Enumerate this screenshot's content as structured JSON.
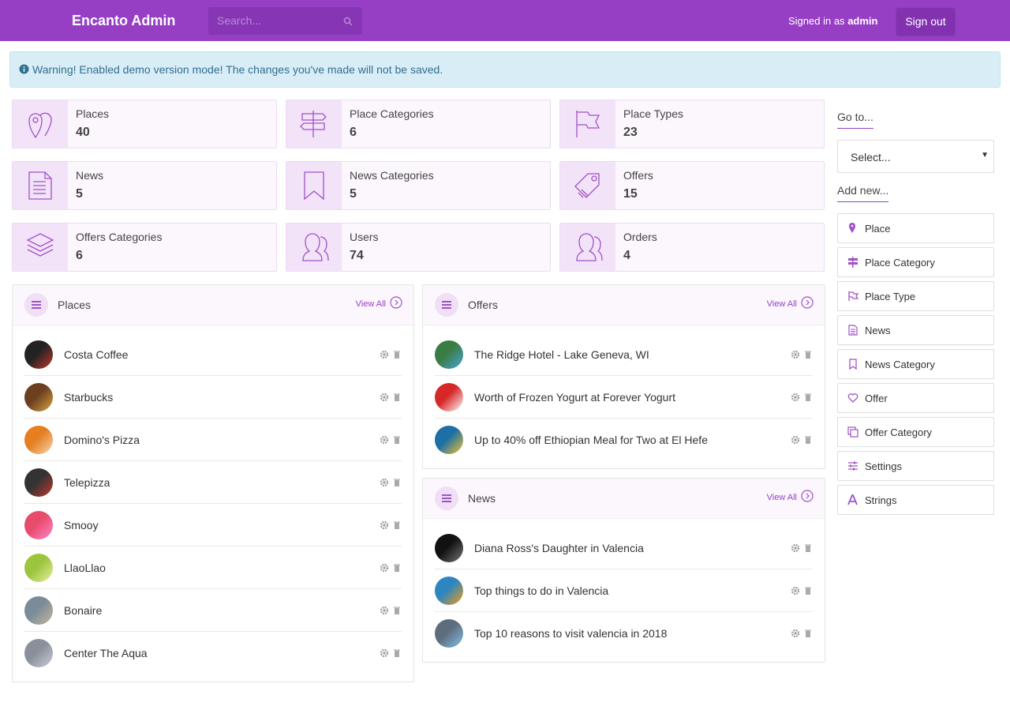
{
  "header": {
    "brand": "Encanto Admin",
    "search_placeholder": "Search...",
    "signed_in_prefix": "Signed in as",
    "user": "admin",
    "sign_out": "Sign out"
  },
  "alert": {
    "text": "Warning! Enabled demo version mode! The changes you've made will not be saved."
  },
  "stats": [
    {
      "label": "Places",
      "value": "40"
    },
    {
      "label": "Place Categories",
      "value": "6"
    },
    {
      "label": "Place Types",
      "value": "23"
    },
    {
      "label": "News",
      "value": "5"
    },
    {
      "label": "News Categories",
      "value": "5"
    },
    {
      "label": "Offers",
      "value": "15"
    },
    {
      "label": "Offers Categories",
      "value": "6"
    },
    {
      "label": "Users",
      "value": "74"
    },
    {
      "label": "Orders",
      "value": "4"
    }
  ],
  "panels": {
    "places": {
      "title": "Places",
      "view_all": "View All",
      "items": [
        "Costa Coffee",
        "Starbucks",
        "Domino's Pizza",
        "Telepizza",
        "Smooy",
        "LlaoLlao",
        "Bonaire",
        "Center The Aqua"
      ]
    },
    "offers": {
      "title": "Offers",
      "view_all": "View All",
      "items": [
        "The Ridge Hotel - Lake Geneva, WI",
        "Worth of Frozen Yogurt at Forever Yogurt",
        "Up to 40% off Ethiopian Meal for Two at El Hefe"
      ]
    },
    "news": {
      "title": "News",
      "view_all": "View All",
      "items": [
        "Diana Ross's Daughter in Valencia",
        "Top things to do in Valencia",
        "Top 10 reasons to visit valencia in 2018"
      ]
    }
  },
  "sidebar": {
    "goto_label": "Go to...",
    "select_placeholder": "Select...",
    "add_new_label": "Add new...",
    "add_new_items": [
      "Place",
      "Place Category",
      "Place Type",
      "News",
      "News Category",
      "Offer",
      "Offer Category",
      "Settings",
      "Strings"
    ]
  }
}
